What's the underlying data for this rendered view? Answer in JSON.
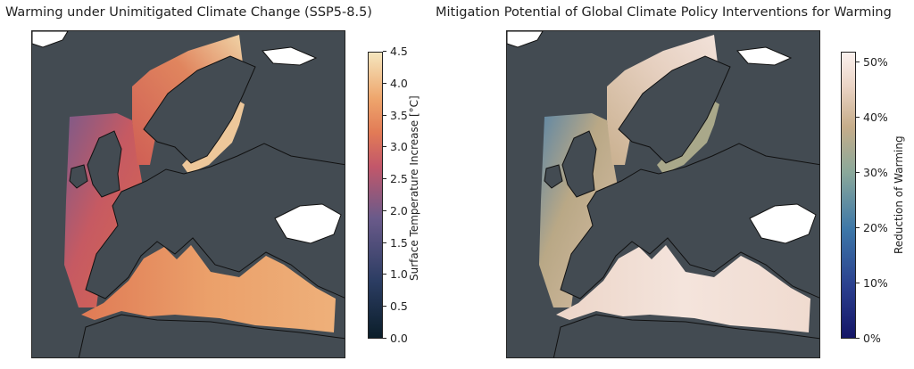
{
  "panels": [
    {
      "title": "Warming under Unimitigated Climate Change (SSP5-8.5)",
      "colorbar": {
        "label": "Surface Temperature Increase [°C]",
        "ticks": [
          "0.0",
          "0.5",
          "1.0",
          "1.5",
          "2.0",
          "2.5",
          "3.0",
          "3.5",
          "4.0",
          "4.5"
        ],
        "range": [
          0.0,
          4.5
        ]
      },
      "colors": {
        "land": "#434b52",
        "sea_high": "#eaa06a",
        "sea_mid": "#d4614e",
        "sea_low": "#7d5a8a"
      }
    },
    {
      "title": "Mitigation Potential of Global Climate Policy Interventions for Warming",
      "colorbar": {
        "label": "Reduction of Warming",
        "ticks": [
          "0%",
          "10%",
          "20%",
          "30%",
          "40%",
          "50%"
        ],
        "range": [
          0,
          52
        ]
      },
      "colors": {
        "land": "#434b52",
        "sea_high": "#f1ddd3",
        "sea_mid": "#ccb496",
        "sea_low": "#5d86a5"
      }
    }
  ]
}
